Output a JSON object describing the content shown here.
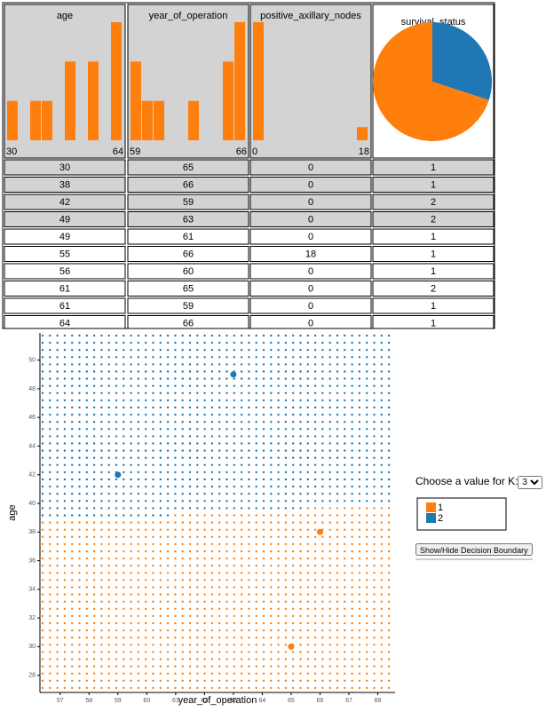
{
  "table": {
    "columns": [
      "age",
      "year_of_operation",
      "positive_axillary_nodes",
      "survival_status"
    ],
    "rows": [
      [
        30,
        65,
        0,
        1
      ],
      [
        38,
        66,
        0,
        1
      ],
      [
        42,
        59,
        0,
        2
      ],
      [
        49,
        63,
        0,
        2
      ],
      [
        49,
        61,
        0,
        1
      ],
      [
        55,
        66,
        18,
        1
      ],
      [
        56,
        60,
        0,
        1
      ],
      [
        61,
        65,
        0,
        2
      ],
      [
        61,
        59,
        0,
        1
      ],
      [
        64,
        66,
        0,
        1
      ]
    ],
    "highlighted": [
      true,
      true,
      true,
      true,
      false,
      false,
      false,
      false,
      false,
      false
    ]
  },
  "histograms": [
    {
      "counts": [
        1,
        0,
        1,
        1,
        0,
        2,
        0,
        2,
        0,
        3
      ],
      "min": 30,
      "max": 64
    },
    {
      "counts": [
        2,
        1,
        1,
        0,
        0,
        1,
        0,
        0,
        2,
        3
      ],
      "min": 59,
      "max": 66
    },
    {
      "counts": [
        9,
        0,
        0,
        0,
        0,
        0,
        0,
        0,
        0,
        1
      ],
      "min": 0,
      "max": 18
    }
  ],
  "pie": {
    "values": [
      7,
      3
    ],
    "colors": [
      "#ff7f0e",
      "#1f77b4"
    ]
  },
  "scatter": {
    "x_label": "year_of_operation",
    "y_label": "age",
    "xlim": [
      56.3,
      68.6
    ],
    "ylim": [
      26.8,
      51.9
    ],
    "xticks": [
      57,
      58,
      59,
      60,
      61,
      62,
      63,
      64,
      65,
      66,
      67,
      68
    ],
    "yticks": [
      28,
      30,
      32,
      34,
      36,
      38,
      40,
      42,
      44,
      46,
      48,
      50
    ],
    "x": [
      65,
      66,
      59,
      63
    ],
    "y": [
      30,
      38,
      42,
      49
    ],
    "class": [
      1,
      1,
      2,
      2
    ],
    "class_colors": {
      "1": "#ff7f0e",
      "2": "#1f77b4"
    }
  },
  "controls": {
    "k_label": "Choose a value for K:",
    "k": 3,
    "legend": [
      "1",
      "2"
    ],
    "button": "Show/Hide Decision Boundary"
  }
}
